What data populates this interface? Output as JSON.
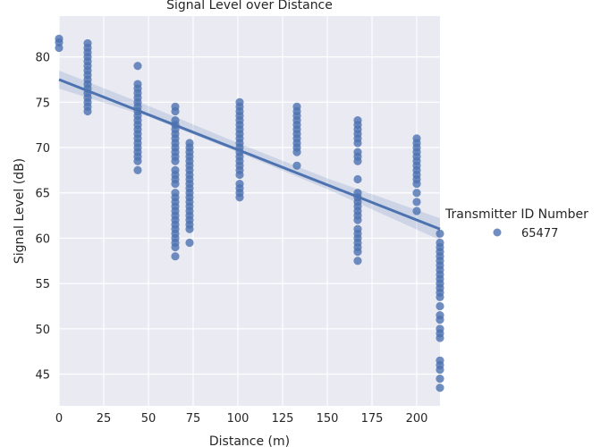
{
  "chart_data": {
    "type": "scatter",
    "title": "Signal Level over Distance",
    "xlabel": "Distance (m)",
    "ylabel": "Signal Level (dB)",
    "xlim": [
      0,
      213
    ],
    "ylim": [
      41.5,
      84.5
    ],
    "xticks": [
      "0",
      "25",
      "50",
      "75",
      "100",
      "125",
      "150",
      "175",
      "200"
    ],
    "yticks": [
      "45",
      "50",
      "55",
      "60",
      "65",
      "70",
      "75",
      "80"
    ],
    "grid": true,
    "legend": {
      "title": "Transmitter ID Number",
      "entries": [
        "65477"
      ],
      "placement": "right"
    },
    "colors": {
      "background": "#eaeaf2",
      "grid": "#ffffff",
      "series": "#4c72b0"
    },
    "series": [
      {
        "name": "65477",
        "points": [
          [
            0,
            82.0
          ],
          [
            0,
            81.6
          ],
          [
            0,
            81.0
          ],
          [
            16,
            81.5
          ],
          [
            16,
            81.0
          ],
          [
            16,
            80.5
          ],
          [
            16,
            80.0
          ],
          [
            16,
            79.5
          ],
          [
            16,
            79.0
          ],
          [
            16,
            78.5
          ],
          [
            16,
            78.0
          ],
          [
            16,
            77.5
          ],
          [
            16,
            77.0
          ],
          [
            16,
            76.5
          ],
          [
            16,
            76.0
          ],
          [
            16,
            75.5
          ],
          [
            16,
            75.0
          ],
          [
            16,
            74.5
          ],
          [
            16,
            74.0
          ],
          [
            44,
            79.0
          ],
          [
            44,
            77.0
          ],
          [
            44,
            76.5
          ],
          [
            44,
            76.0
          ],
          [
            44,
            75.5
          ],
          [
            44,
            75.0
          ],
          [
            44,
            74.5
          ],
          [
            44,
            74.0
          ],
          [
            44,
            73.5
          ],
          [
            44,
            73.0
          ],
          [
            44,
            72.5
          ],
          [
            44,
            72.0
          ],
          [
            44,
            71.5
          ],
          [
            44,
            71.0
          ],
          [
            44,
            70.5
          ],
          [
            44,
            70.0
          ],
          [
            44,
            69.5
          ],
          [
            44,
            69.0
          ],
          [
            44,
            68.5
          ],
          [
            44,
            67.5
          ],
          [
            65,
            74.5
          ],
          [
            65,
            74.0
          ],
          [
            65,
            73.0
          ],
          [
            65,
            72.5
          ],
          [
            65,
            72.0
          ],
          [
            65,
            71.5
          ],
          [
            65,
            71.0
          ],
          [
            65,
            70.5
          ],
          [
            65,
            70.0
          ],
          [
            65,
            69.5
          ],
          [
            65,
            69.0
          ],
          [
            65,
            68.5
          ],
          [
            65,
            67.5
          ],
          [
            65,
            67.0
          ],
          [
            65,
            66.5
          ],
          [
            65,
            66.0
          ],
          [
            65,
            65.0
          ],
          [
            65,
            64.5
          ],
          [
            65,
            64.0
          ],
          [
            65,
            63.5
          ],
          [
            65,
            63.0
          ],
          [
            65,
            62.5
          ],
          [
            65,
            62.0
          ],
          [
            65,
            61.5
          ],
          [
            65,
            61.0
          ],
          [
            65,
            60.5
          ],
          [
            65,
            60.0
          ],
          [
            65,
            59.5
          ],
          [
            65,
            59.0
          ],
          [
            65,
            58.0
          ],
          [
            73,
            70.5
          ],
          [
            73,
            70.0
          ],
          [
            73,
            69.5
          ],
          [
            73,
            69.0
          ],
          [
            73,
            68.5
          ],
          [
            73,
            68.0
          ],
          [
            73,
            67.5
          ],
          [
            73,
            67.0
          ],
          [
            73,
            66.5
          ],
          [
            73,
            66.0
          ],
          [
            73,
            65.5
          ],
          [
            73,
            65.0
          ],
          [
            73,
            64.5
          ],
          [
            73,
            64.0
          ],
          [
            73,
            63.5
          ],
          [
            73,
            63.0
          ],
          [
            73,
            62.5
          ],
          [
            73,
            62.0
          ],
          [
            73,
            61.5
          ],
          [
            73,
            61.0
          ],
          [
            73,
            59.5
          ],
          [
            101,
            75.0
          ],
          [
            101,
            74.5
          ],
          [
            101,
            74.0
          ],
          [
            101,
            73.5
          ],
          [
            101,
            73.0
          ],
          [
            101,
            72.5
          ],
          [
            101,
            72.0
          ],
          [
            101,
            71.5
          ],
          [
            101,
            71.0
          ],
          [
            101,
            70.5
          ],
          [
            101,
            70.0
          ],
          [
            101,
            69.5
          ],
          [
            101,
            69.0
          ],
          [
            101,
            68.5
          ],
          [
            101,
            68.0
          ],
          [
            101,
            67.5
          ],
          [
            101,
            67.0
          ],
          [
            101,
            66.0
          ],
          [
            101,
            65.5
          ],
          [
            101,
            65.0
          ],
          [
            101,
            64.5
          ],
          [
            133,
            74.5
          ],
          [
            133,
            74.0
          ],
          [
            133,
            73.5
          ],
          [
            133,
            73.0
          ],
          [
            133,
            72.5
          ],
          [
            133,
            72.0
          ],
          [
            133,
            71.5
          ],
          [
            133,
            71.0
          ],
          [
            133,
            70.5
          ],
          [
            133,
            70.0
          ],
          [
            133,
            69.5
          ],
          [
            133,
            68.0
          ],
          [
            167,
            73.0
          ],
          [
            167,
            72.5
          ],
          [
            167,
            72.0
          ],
          [
            167,
            71.5
          ],
          [
            167,
            71.0
          ],
          [
            167,
            70.5
          ],
          [
            167,
            69.5
          ],
          [
            167,
            69.0
          ],
          [
            167,
            68.5
          ],
          [
            167,
            66.5
          ],
          [
            167,
            65.0
          ],
          [
            167,
            64.5
          ],
          [
            167,
            64.0
          ],
          [
            167,
            63.5
          ],
          [
            167,
            63.0
          ],
          [
            167,
            62.5
          ],
          [
            167,
            62.0
          ],
          [
            167,
            61.0
          ],
          [
            167,
            60.5
          ],
          [
            167,
            60.0
          ],
          [
            167,
            59.5
          ],
          [
            167,
            59.0
          ],
          [
            167,
            58.5
          ],
          [
            167,
            57.5
          ],
          [
            200,
            71.0
          ],
          [
            200,
            70.5
          ],
          [
            200,
            70.0
          ],
          [
            200,
            69.5
          ],
          [
            200,
            69.0
          ],
          [
            200,
            68.5
          ],
          [
            200,
            68.0
          ],
          [
            200,
            67.5
          ],
          [
            200,
            67.0
          ],
          [
            200,
            66.5
          ],
          [
            200,
            66.0
          ],
          [
            200,
            65.0
          ],
          [
            200,
            64.0
          ],
          [
            200,
            63.0
          ],
          [
            213,
            60.5
          ],
          [
            213,
            59.5
          ],
          [
            213,
            59.0
          ],
          [
            213,
            58.5
          ],
          [
            213,
            58.0
          ],
          [
            213,
            57.5
          ],
          [
            213,
            57.0
          ],
          [
            213,
            56.5
          ],
          [
            213,
            56.0
          ],
          [
            213,
            55.5
          ],
          [
            213,
            55.0
          ],
          [
            213,
            54.5
          ],
          [
            213,
            54.0
          ],
          [
            213,
            53.5
          ],
          [
            213,
            52.5
          ],
          [
            213,
            51.5
          ],
          [
            213,
            51.0
          ],
          [
            213,
            50.0
          ],
          [
            213,
            49.5
          ],
          [
            213,
            49.0
          ],
          [
            213,
            46.5
          ],
          [
            213,
            46.0
          ],
          [
            213,
            45.5
          ],
          [
            213,
            44.5
          ],
          [
            213,
            43.5
          ]
        ]
      }
    ],
    "regression": {
      "x": [
        0,
        213
      ],
      "y": [
        77.5,
        61.0
      ],
      "ci_x": [
        0,
        50,
        100,
        150,
        213
      ],
      "ci_lower": [
        76.5,
        73.4,
        69.5,
        65.4,
        59.8
      ],
      "ci_upper": [
        78.5,
        74.6,
        70.5,
        66.6,
        62.2
      ]
    }
  }
}
